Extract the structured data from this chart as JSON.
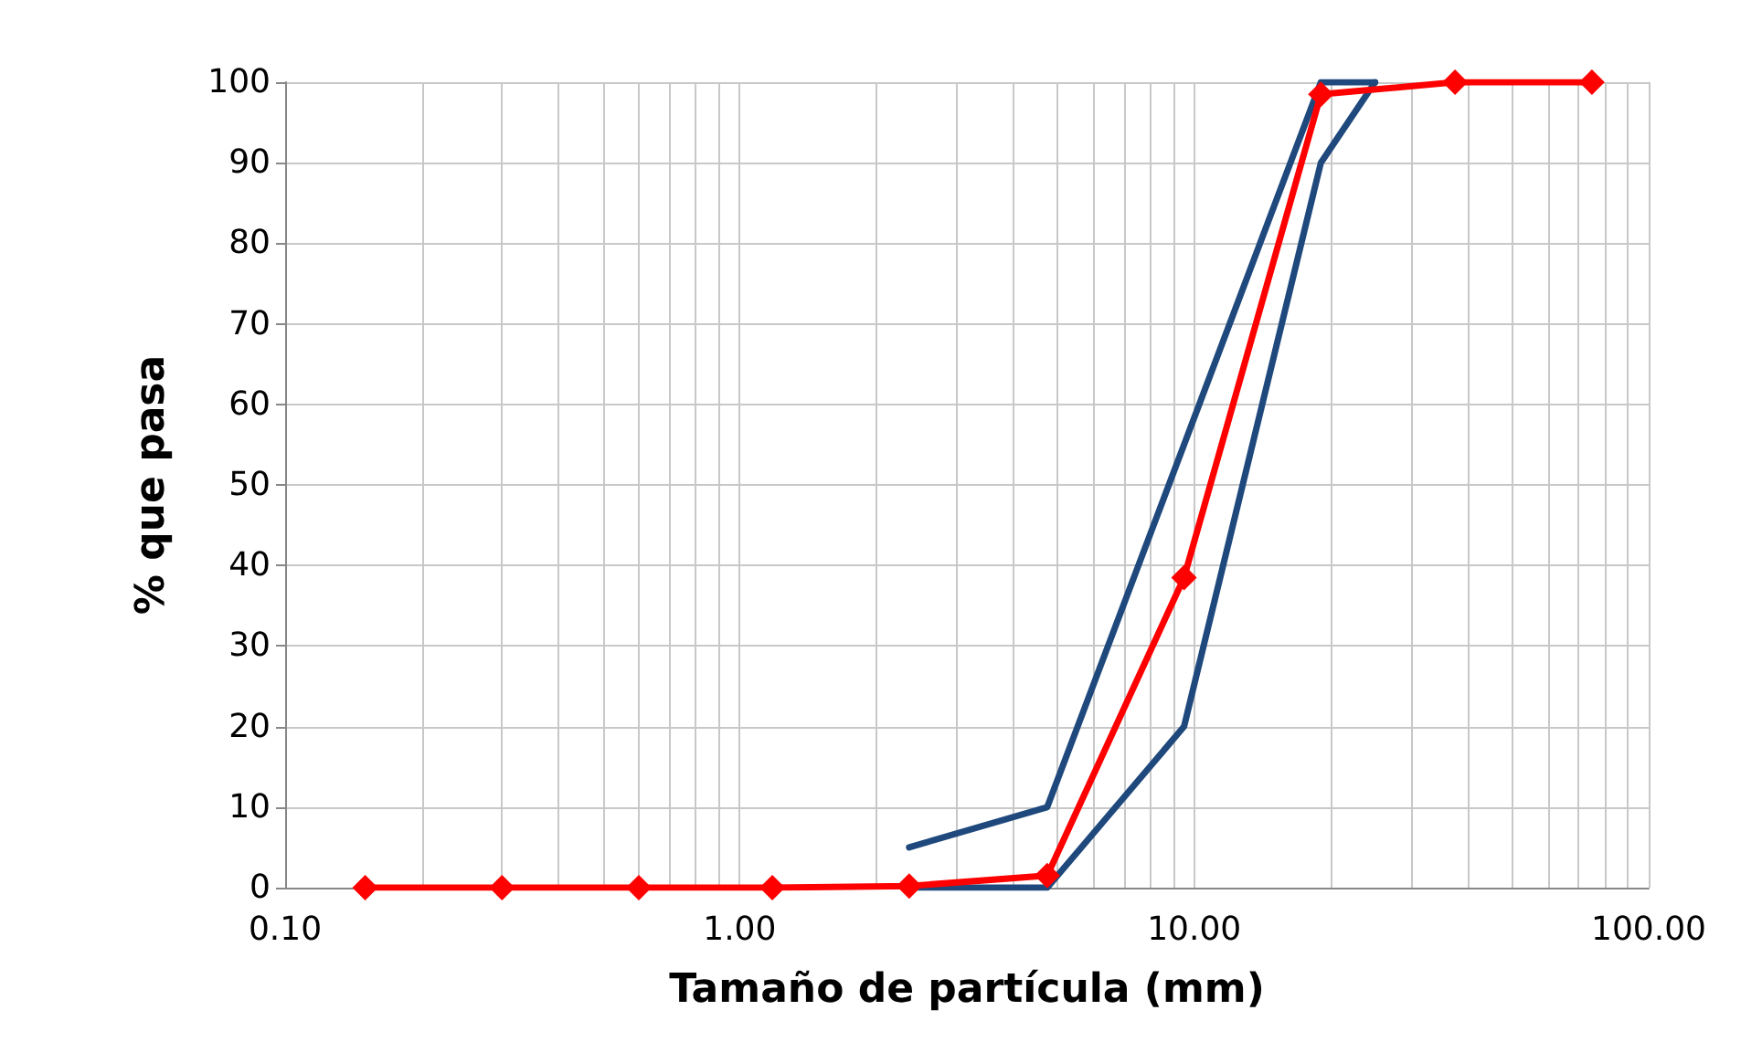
{
  "chart_data": {
    "type": "line",
    "xlabel": "Tamaño de partícula (mm)",
    "ylabel": "% que pasa",
    "log": "x",
    "grid": true,
    "line_style": "solid",
    "xlim": [
      0.1,
      100
    ],
    "xticks": [
      {
        "value": 0.1,
        "label": "0.10"
      },
      {
        "value": 1,
        "label": "1.00"
      },
      {
        "value": 10,
        "label": "10.00"
      },
      {
        "value": 100,
        "label": "100.00"
      }
    ],
    "ylim": [
      0,
      100
    ],
    "yticks": [
      0,
      10,
      20,
      30,
      40,
      50,
      60,
      70,
      80,
      90,
      100
    ],
    "series": [
      {
        "color": "#1f497d",
        "marker": "none",
        "x": [
          2.36,
          4.75,
          9.5,
          19,
          25
        ],
        "values": [
          5,
          10,
          55,
          100,
          100
        ]
      },
      {
        "color": "#1f497d",
        "marker": "none",
        "x": [
          2.36,
          4.75,
          9.5,
          19,
          25
        ],
        "values": [
          0,
          0,
          20,
          90,
          100
        ]
      },
      {
        "color": "#ff0000",
        "marker": "diamond",
        "x": [
          0.15,
          0.3,
          0.6,
          1.18,
          2.36,
          4.75,
          9.5,
          19,
          37.5,
          75
        ],
        "values": [
          0,
          0,
          0,
          0,
          0.2,
          1.5,
          38.5,
          98.5,
          100,
          100
        ]
      }
    ]
  }
}
